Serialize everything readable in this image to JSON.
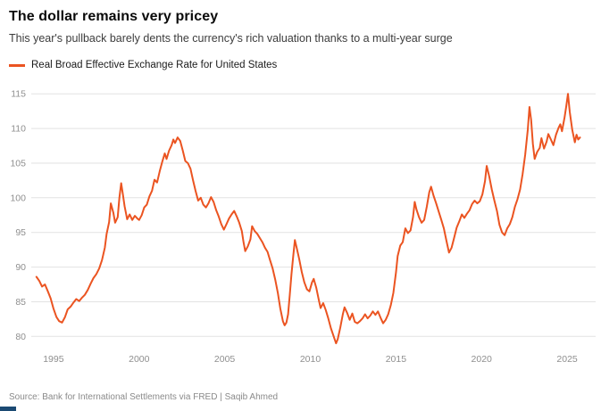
{
  "header": {
    "title": "The dollar remains very pricey",
    "subtitle": "This year's pullback barely dents the currency's rich valuation thanks to a multi-year surge"
  },
  "footer": {
    "source": "Source: Bank for International Settlements via FRED | Saqib Ahmed",
    "brand_color": "#1b4a73"
  },
  "chart_data": {
    "type": "line",
    "title": "The dollar remains very pricey",
    "subtitle": "This year's pullback barely dents the currency's rich valuation thanks to a multi-year surge",
    "xlabel": "",
    "ylabel": "",
    "xlim": [
      1993.7,
      2026.3
    ],
    "ylim": [
      78.5,
      115.8
    ],
    "xticks": [
      1995,
      2000,
      2005,
      2010,
      2015,
      2020,
      2025
    ],
    "yticks": [
      80,
      85,
      90,
      95,
      100,
      105,
      110,
      115
    ],
    "grid": "horizontal",
    "gridline_color": "#e2e2e2",
    "tick_label_color": "#8f8f8f",
    "legend_position": "top-left",
    "series": [
      {
        "name": "Real Broad Effective Exchange Rate for United States",
        "color": "#eb5421",
        "points": [
          [
            1994.0,
            88.6
          ],
          [
            1994.17,
            88.0
          ],
          [
            1994.33,
            87.2
          ],
          [
            1994.5,
            87.5
          ],
          [
            1994.67,
            86.5
          ],
          [
            1994.83,
            85.5
          ],
          [
            1995.0,
            84.0
          ],
          [
            1995.17,
            82.8
          ],
          [
            1995.33,
            82.2
          ],
          [
            1995.5,
            82.0
          ],
          [
            1995.67,
            82.8
          ],
          [
            1995.83,
            83.9
          ],
          [
            1996.0,
            84.3
          ],
          [
            1996.17,
            84.9
          ],
          [
            1996.33,
            85.4
          ],
          [
            1996.5,
            85.1
          ],
          [
            1996.67,
            85.6
          ],
          [
            1996.83,
            86.0
          ],
          [
            1997.0,
            86.7
          ],
          [
            1997.17,
            87.6
          ],
          [
            1997.33,
            88.4
          ],
          [
            1997.5,
            89.0
          ],
          [
            1997.67,
            89.8
          ],
          [
            1997.83,
            91.0
          ],
          [
            1998.0,
            92.8
          ],
          [
            1998.1,
            94.8
          ],
          [
            1998.25,
            96.5
          ],
          [
            1998.35,
            99.2
          ],
          [
            1998.5,
            97.8
          ],
          [
            1998.6,
            96.4
          ],
          [
            1998.75,
            97.2
          ],
          [
            1998.85,
            100.0
          ],
          [
            1998.95,
            102.1
          ],
          [
            1999.05,
            100.5
          ],
          [
            1999.15,
            98.8
          ],
          [
            1999.3,
            96.9
          ],
          [
            1999.45,
            97.6
          ],
          [
            1999.6,
            96.8
          ],
          [
            1999.75,
            97.4
          ],
          [
            1999.9,
            97.0
          ],
          [
            2000.0,
            96.8
          ],
          [
            2000.15,
            97.5
          ],
          [
            2000.3,
            98.6
          ],
          [
            2000.45,
            99.0
          ],
          [
            2000.6,
            100.2
          ],
          [
            2000.75,
            101.0
          ],
          [
            2000.9,
            102.6
          ],
          [
            2001.05,
            102.2
          ],
          [
            2001.2,
            103.8
          ],
          [
            2001.35,
            105.2
          ],
          [
            2001.5,
            106.4
          ],
          [
            2001.6,
            105.6
          ],
          [
            2001.75,
            106.8
          ],
          [
            2001.9,
            107.6
          ],
          [
            2002.0,
            108.4
          ],
          [
            2002.1,
            107.9
          ],
          [
            2002.25,
            108.7
          ],
          [
            2002.4,
            108.2
          ],
          [
            2002.55,
            106.8
          ],
          [
            2002.7,
            105.3
          ],
          [
            2002.85,
            105.0
          ],
          [
            2003.0,
            104.2
          ],
          [
            2003.15,
            102.5
          ],
          [
            2003.3,
            101.0
          ],
          [
            2003.45,
            99.6
          ],
          [
            2003.6,
            100.0
          ],
          [
            2003.75,
            99.0
          ],
          [
            2003.9,
            98.6
          ],
          [
            2004.05,
            99.2
          ],
          [
            2004.2,
            100.1
          ],
          [
            2004.35,
            99.4
          ],
          [
            2004.5,
            98.2
          ],
          [
            2004.65,
            97.3
          ],
          [
            2004.8,
            96.2
          ],
          [
            2004.95,
            95.4
          ],
          [
            2005.1,
            96.2
          ],
          [
            2005.25,
            97.0
          ],
          [
            2005.4,
            97.6
          ],
          [
            2005.55,
            98.1
          ],
          [
            2005.7,
            97.3
          ],
          [
            2005.85,
            96.4
          ],
          [
            2006.0,
            95.2
          ],
          [
            2006.1,
            93.6
          ],
          [
            2006.2,
            92.3
          ],
          [
            2006.35,
            93.0
          ],
          [
            2006.5,
            94.0
          ],
          [
            2006.6,
            95.9
          ],
          [
            2006.75,
            95.2
          ],
          [
            2006.9,
            94.8
          ],
          [
            2007.05,
            94.2
          ],
          [
            2007.2,
            93.6
          ],
          [
            2007.35,
            92.8
          ],
          [
            2007.5,
            92.2
          ],
          [
            2007.65,
            91.0
          ],
          [
            2007.8,
            89.8
          ],
          [
            2007.95,
            88.2
          ],
          [
            2008.1,
            86.3
          ],
          [
            2008.25,
            84.0
          ],
          [
            2008.4,
            82.2
          ],
          [
            2008.5,
            81.6
          ],
          [
            2008.6,
            82.0
          ],
          [
            2008.7,
            83.2
          ],
          [
            2008.8,
            86.0
          ],
          [
            2008.9,
            89.0
          ],
          [
            2009.0,
            91.5
          ],
          [
            2009.1,
            93.9
          ],
          [
            2009.2,
            92.8
          ],
          [
            2009.35,
            91.2
          ],
          [
            2009.5,
            89.3
          ],
          [
            2009.65,
            87.8
          ],
          [
            2009.8,
            86.8
          ],
          [
            2009.95,
            86.5
          ],
          [
            2010.1,
            87.8
          ],
          [
            2010.2,
            88.3
          ],
          [
            2010.35,
            87.0
          ],
          [
            2010.5,
            85.2
          ],
          [
            2010.6,
            84.1
          ],
          [
            2010.75,
            84.8
          ],
          [
            2010.9,
            83.8
          ],
          [
            2011.05,
            82.6
          ],
          [
            2011.2,
            81.2
          ],
          [
            2011.35,
            80.1
          ],
          [
            2011.5,
            79.0
          ],
          [
            2011.6,
            79.6
          ],
          [
            2011.75,
            81.3
          ],
          [
            2011.9,
            83.2
          ],
          [
            2012.0,
            84.2
          ],
          [
            2012.15,
            83.4
          ],
          [
            2012.3,
            82.4
          ],
          [
            2012.45,
            83.3
          ],
          [
            2012.6,
            82.1
          ],
          [
            2012.75,
            81.9
          ],
          [
            2012.9,
            82.2
          ],
          [
            2013.05,
            82.6
          ],
          [
            2013.2,
            83.2
          ],
          [
            2013.35,
            82.6
          ],
          [
            2013.5,
            83.0
          ],
          [
            2013.65,
            83.6
          ],
          [
            2013.8,
            83.1
          ],
          [
            2013.95,
            83.6
          ],
          [
            2014.1,
            82.7
          ],
          [
            2014.25,
            81.9
          ],
          [
            2014.4,
            82.4
          ],
          [
            2014.55,
            83.2
          ],
          [
            2014.7,
            84.5
          ],
          [
            2014.85,
            86.3
          ],
          [
            2015.0,
            89.2
          ],
          [
            2015.1,
            91.6
          ],
          [
            2015.25,
            93.1
          ],
          [
            2015.4,
            93.6
          ],
          [
            2015.55,
            95.6
          ],
          [
            2015.7,
            94.9
          ],
          [
            2015.85,
            95.3
          ],
          [
            2016.0,
            97.2
          ],
          [
            2016.1,
            99.4
          ],
          [
            2016.2,
            98.3
          ],
          [
            2016.35,
            97.2
          ],
          [
            2016.5,
            96.4
          ],
          [
            2016.65,
            96.8
          ],
          [
            2016.8,
            98.7
          ],
          [
            2016.95,
            100.8
          ],
          [
            2017.05,
            101.6
          ],
          [
            2017.2,
            100.3
          ],
          [
            2017.35,
            99.2
          ],
          [
            2017.5,
            98.0
          ],
          [
            2017.65,
            96.8
          ],
          [
            2017.8,
            95.6
          ],
          [
            2017.95,
            93.8
          ],
          [
            2018.1,
            92.1
          ],
          [
            2018.25,
            92.8
          ],
          [
            2018.4,
            94.2
          ],
          [
            2018.55,
            95.7
          ],
          [
            2018.7,
            96.6
          ],
          [
            2018.85,
            97.6
          ],
          [
            2019.0,
            97.1
          ],
          [
            2019.15,
            97.7
          ],
          [
            2019.3,
            98.2
          ],
          [
            2019.45,
            99.1
          ],
          [
            2019.6,
            99.6
          ],
          [
            2019.75,
            99.2
          ],
          [
            2019.9,
            99.5
          ],
          [
            2020.05,
            100.5
          ],
          [
            2020.2,
            102.4
          ],
          [
            2020.3,
            104.6
          ],
          [
            2020.45,
            103.1
          ],
          [
            2020.6,
            101.2
          ],
          [
            2020.75,
            99.6
          ],
          [
            2020.9,
            98.1
          ],
          [
            2021.05,
            96.1
          ],
          [
            2021.2,
            95.0
          ],
          [
            2021.35,
            94.6
          ],
          [
            2021.5,
            95.6
          ],
          [
            2021.65,
            96.2
          ],
          [
            2021.8,
            97.2
          ],
          [
            2021.95,
            98.7
          ],
          [
            2022.1,
            99.8
          ],
          [
            2022.25,
            101.2
          ],
          [
            2022.4,
            103.4
          ],
          [
            2022.55,
            106.2
          ],
          [
            2022.7,
            109.8
          ],
          [
            2022.8,
            113.1
          ],
          [
            2022.9,
            111.2
          ],
          [
            2023.0,
            107.8
          ],
          [
            2023.1,
            105.6
          ],
          [
            2023.25,
            106.6
          ],
          [
            2023.4,
            107.2
          ],
          [
            2023.5,
            108.6
          ],
          [
            2023.65,
            107.1
          ],
          [
            2023.8,
            108.1
          ],
          [
            2023.9,
            109.2
          ],
          [
            2024.05,
            108.4
          ],
          [
            2024.2,
            107.6
          ],
          [
            2024.35,
            109.1
          ],
          [
            2024.5,
            110.1
          ],
          [
            2024.6,
            110.6
          ],
          [
            2024.7,
            109.6
          ],
          [
            2024.85,
            111.6
          ],
          [
            2024.95,
            113.2
          ],
          [
            2025.05,
            115.0
          ],
          [
            2025.15,
            112.4
          ],
          [
            2025.3,
            109.8
          ],
          [
            2025.45,
            108.0
          ],
          [
            2025.55,
            109.1
          ],
          [
            2025.65,
            108.4
          ],
          [
            2025.75,
            108.7
          ]
        ]
      }
    ]
  }
}
